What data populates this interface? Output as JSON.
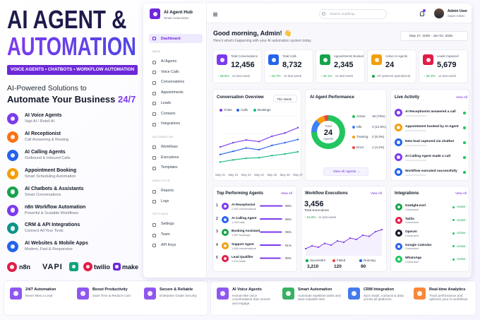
{
  "promo": {
    "title_line1": "AI AGENT &",
    "title_line2": "AUTOMATION",
    "banner": "VOICE AGENTS • CHATBOTS • WORKFLOW AUTOMATION",
    "tagline": "AI-Powered Solutions to",
    "headline": "Automate Your Business",
    "headline_accent": "24/7",
    "features": [
      {
        "title": "AI Voice Agents",
        "subtitle": "Vapi AI / Retell AI",
        "color": "#7c3aed"
      },
      {
        "title": "AI Receptionist",
        "subtitle": "Call Answering & Routing",
        "color": "#f97316"
      },
      {
        "title": "AI Calling Agents",
        "subtitle": "Outbound & Inbound Calls",
        "color": "#2563eb"
      },
      {
        "title": "Appointment Booking",
        "subtitle": "Smart Scheduling Automation",
        "color": "#f59e0b"
      },
      {
        "title": "AI Chatbots & Assistants",
        "subtitle": "Smart Conversations",
        "color": "#16a34a"
      },
      {
        "title": "n8n Workflow Automation",
        "subtitle": "Powerful & Scalable Workflows",
        "color": "#7c3aed"
      },
      {
        "title": "CRM & API Integrations",
        "subtitle": "Connect All Your Tools",
        "color": "#0d9488"
      },
      {
        "title": "AI Websites & Mobile Apps",
        "subtitle": "Modern, Fast & Responsive",
        "color": "#2563eb"
      }
    ],
    "logos": [
      "n8n",
      "VAPI",
      "twilio",
      "make"
    ]
  },
  "dashboard": {
    "brand": {
      "name": "AI Agent Hub",
      "tagline": "Smart Automation"
    },
    "nav_active": "Dashboard",
    "nav_sections": [
      {
        "heading": "MAIN",
        "items": [
          "AI Agents",
          "Voice Calls",
          "Conversations",
          "Appointments",
          "Leads",
          "Contacts",
          "Integrations"
        ]
      },
      {
        "heading": "AUTOMATION",
        "items": [
          "Workflows",
          "Executions",
          "Templates"
        ]
      },
      {
        "heading": "ANALYTICS",
        "items": [
          "Reports",
          "Logs"
        ]
      },
      {
        "heading": "SETTINGS",
        "items": [
          "Settings",
          "Team",
          "API Keys"
        ]
      }
    ],
    "search_placeholder": "Search anything...",
    "user": {
      "name": "Admin User",
      "role": "Super Admin"
    },
    "greeting": "Good morning, Admin! 👋",
    "subtitle": "Here's what's happening with your AI automation system today.",
    "date_range": "May 27, 2025 - Jun 02, 2025",
    "kpis": [
      {
        "label": "Total Conversations",
        "value": "12,456",
        "change": "↑ 28.5%",
        "note": "vs last week",
        "color": "#7c3aed"
      },
      {
        "label": "Total Calls",
        "value": "8,732",
        "change": "↑ 18.7%",
        "note": "vs last week",
        "color": "#2563eb"
      },
      {
        "label": "Appointments Booked",
        "value": "2,345",
        "change": "↑ 32.1%",
        "note": "vs last week",
        "color": "#16a34a"
      },
      {
        "label": "Active AI Agents",
        "value": "24",
        "note": "All systems operational",
        "color": "#f59e0b"
      },
      {
        "label": "Leads Captured",
        "value": "5,679",
        "change": "↑ 26.3%",
        "note": "vs last week",
        "color": "#e11d48"
      }
    ],
    "live_activity": {
      "title": "Live Activity",
      "link": "View All",
      "items": [
        {
          "text": "AI Receptionist answered a call",
          "color": "#7c3aed"
        },
        {
          "text": "Appointment booked by AI Agent",
          "color": "#f59e0b"
        },
        {
          "text": "New lead captured via chatbot",
          "color": "#2563eb"
        },
        {
          "text": "AI Calling Agent made a call",
          "color": "#7c3aed"
        },
        {
          "text": "Workflow executed successfully",
          "color": "#2563eb"
        }
      ]
    },
    "integrations": {
      "title": "Integrations",
      "link": "View All",
      "items": [
        {
          "name": "GoHighLevel",
          "status": "Connected",
          "state": "Active",
          "color": "#16a34a"
        },
        {
          "name": "Twilio",
          "status": "Connected",
          "state": "Active",
          "color": "#e11d48"
        },
        {
          "name": "OpenAI",
          "status": "Connected",
          "state": "Active",
          "color": "#111827"
        },
        {
          "name": "Google Calendar",
          "status": "Connected",
          "state": "Active",
          "color": "#2563eb"
        },
        {
          "name": "WhatsApp",
          "status": "Connected",
          "state": "Active",
          "color": "#22c55e"
        }
      ]
    }
  },
  "features_strip": [
    {
      "title": "24/7 Automation",
      "subtitle": "Never Miss a Lead",
      "color": "#7c3aed"
    },
    {
      "title": "Boost Productivity",
      "subtitle": "Save Time & Reduce Cost",
      "color": "#7c3aed"
    },
    {
      "title": "Secure & Reliable",
      "subtitle": "Enterprise Grade Security",
      "color": "#7c3aed"
    },
    {
      "title": "AI Voice Agents",
      "subtitle": "Human-like voice conversations that convert and engage.",
      "color": "#7c3aed"
    },
    {
      "title": "Smart Automation",
      "subtitle": "Automate repetitive tasks and save valuable time.",
      "color": "#16a34a"
    },
    {
      "title": "CRM Integration",
      "subtitle": "Sync leads, contacts & data across all platforms.",
      "color": "#2563eb"
    },
    {
      "title": "Real-time Analytics",
      "subtitle": "Track performance and optimize your AI workflows.",
      "color": "#f97316"
    }
  ],
  "chart_data": [
    {
      "type": "line",
      "title": "Conversation Overview",
      "period": "This Week",
      "categories": [
        "May 21",
        "May 22",
        "May 23",
        "May 24",
        "May 25",
        "May 26",
        "May 27"
      ],
      "series": [
        {
          "name": "Chats",
          "color": "#7c3aed",
          "values": [
            42,
            50,
            55,
            52,
            62,
            68,
            78
          ]
        },
        {
          "name": "Calls",
          "color": "#2563eb",
          "values": [
            28,
            34,
            40,
            37,
            45,
            50,
            56
          ]
        },
        {
          "name": "Bookings",
          "color": "#10b981",
          "values": [
            14,
            18,
            21,
            22,
            26,
            29,
            33
          ]
        }
      ],
      "ylim": [
        0,
        100
      ]
    },
    {
      "type": "pie",
      "title": "AI Agent Performance",
      "center_label": "Total",
      "center_value": "24",
      "center_sublabel": "Agents",
      "categories": [
        "Active",
        "Idle",
        "Training",
        "Error"
      ],
      "values": [
        18,
        3,
        2,
        1
      ],
      "value_labels": [
        "18 (75%)",
        "3 (12.5%)",
        "2 (8.3%)",
        "1 (4.2%)"
      ],
      "colors": [
        "#22c55e",
        "#3b82f6",
        "#f59e0b",
        "#ef4444"
      ],
      "link": "View All Agents →"
    },
    {
      "type": "bar",
      "orientation": "horizontal",
      "title": "Top Performing Agents",
      "link": "View All",
      "ranks": [
        "1",
        "2",
        "3",
        "4",
        "5"
      ],
      "categories": [
        "AI Receptionist",
        "AI Calling Agent",
        "Booking Assistant",
        "Support Agent",
        "Lead Qualifier"
      ],
      "details": [
        "2,345 conversations",
        "1,789 calls",
        "1,987 bookings",
        "1,456 conversations",
        "1,234 leads"
      ],
      "values": [
        98,
        96,
        95,
        91,
        90
      ],
      "value_labels": [
        "98%",
        "96%",
        "95%",
        "91%",
        "90%"
      ],
      "xlim": [
        0,
        100
      ],
      "color": "#7c3aed"
    },
    {
      "type": "line",
      "title": "Workflow Executions",
      "link": "View All",
      "total": "3,456",
      "total_label": "Total Executions",
      "change": "↑ 24.8%",
      "note": "vs last week",
      "values": [
        20,
        28,
        24,
        35,
        30,
        42,
        38,
        50,
        46,
        58,
        55,
        68,
        74
      ],
      "ylim": [
        0,
        100
      ],
      "color": "#7c3aed",
      "stats": [
        {
          "label": "Successful",
          "value": "3,210",
          "color": "#16a34a"
        },
        {
          "label": "Failed",
          "value": "120",
          "color": "#ef4444"
        },
        {
          "label": "Running",
          "value": "90",
          "color": "#2563eb"
        }
      ]
    }
  ]
}
